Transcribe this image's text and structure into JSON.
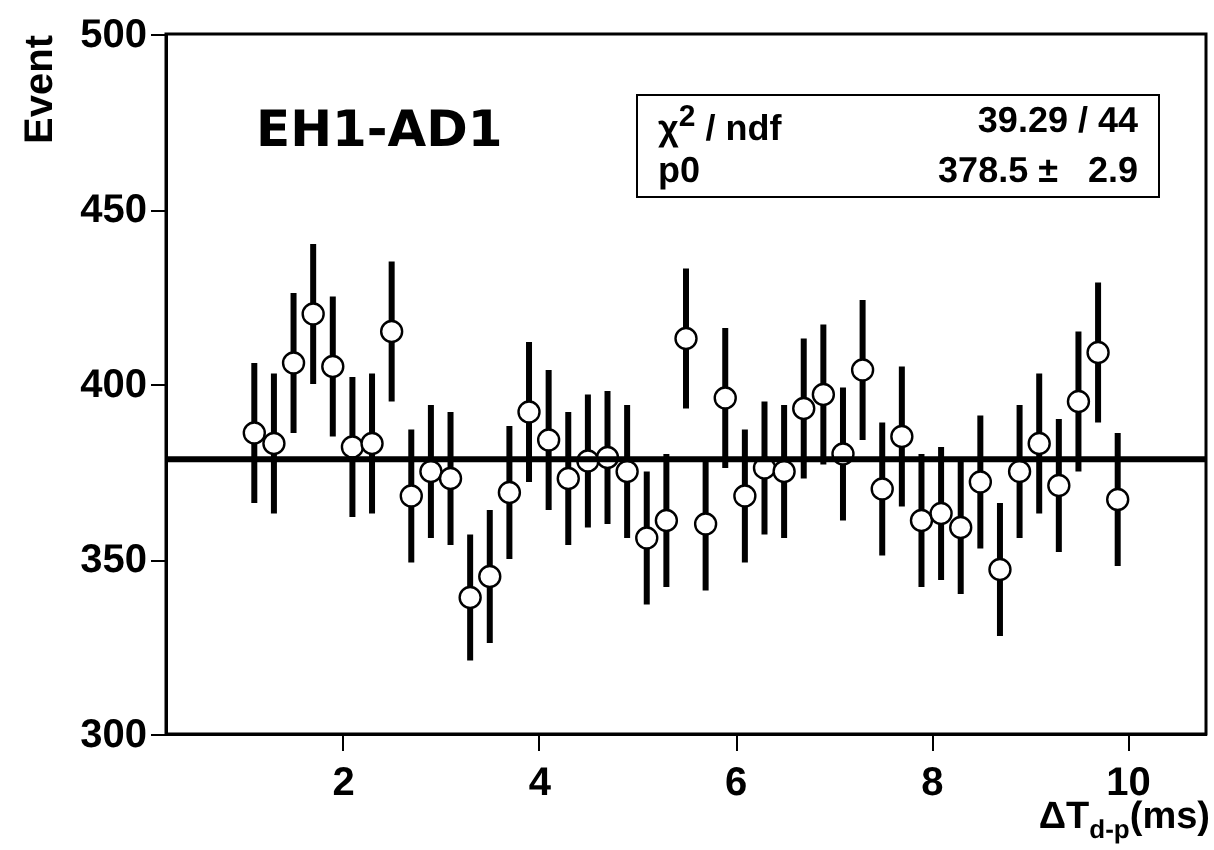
{
  "chart_data": {
    "type": "scatter",
    "xlabel": "ΔT$_{d-p}$(ms)",
    "ylabel": "Event",
    "annotations": [
      "EH1-AD1",
      "χ$^{2}$ / ndf",
      "39.29 / 44",
      "p0",
      "378.5 ±   2.9"
    ],
    "x": [
      1.1,
      1.3,
      1.5,
      1.7,
      1.9,
      2.1,
      2.3,
      2.5,
      2.7,
      2.9,
      3.1,
      3.3,
      3.5,
      3.7,
      3.9,
      4.1,
      4.3,
      4.5,
      4.7,
      4.9,
      5.1,
      5.3,
      5.5,
      5.7,
      5.9,
      6.1,
      6.3,
      6.5,
      6.7,
      6.9,
      7.1,
      7.3,
      7.5,
      7.7,
      7.9,
      8.1,
      8.3,
      8.5,
      8.7,
      8.9,
      9.1,
      9.3,
      9.5,
      9.7,
      9.9
    ],
    "series": [
      {
        "color": "#000000",
        "values": [
          386,
          383,
          406,
          420,
          405,
          382,
          383,
          415,
          368,
          375,
          373,
          339,
          345,
          369,
          392,
          384,
          373,
          378,
          379,
          375,
          356,
          361,
          413,
          360,
          396,
          368,
          376,
          375,
          393,
          397,
          380,
          404,
          370,
          385,
          361,
          363,
          359,
          372,
          347,
          375,
          383,
          371,
          395,
          409,
          367
        ],
        "errors": [
          20,
          20,
          20,
          20,
          20,
          20,
          20,
          20,
          19,
          19,
          19,
          18,
          19,
          19,
          20,
          20,
          19,
          19,
          19,
          19,
          19,
          19,
          20,
          19,
          20,
          19,
          19,
          19,
          20,
          20,
          19,
          20,
          19,
          20,
          19,
          19,
          19,
          19,
          19,
          19,
          20,
          19,
          20,
          20,
          19
        ]
      }
    ],
    "marker": "circle",
    "grid": false,
    "xlim": [
      0.2,
      10.8
    ],
    "xticks": [
      2,
      4,
      6,
      8,
      10
    ],
    "ylim": [
      300,
      500
    ],
    "yticks": [
      300,
      350,
      400,
      450,
      500
    ],
    "ref_lines": [
      {
        "axis": "y",
        "value": 378.5,
        "color": "#000000"
      }
    ]
  }
}
